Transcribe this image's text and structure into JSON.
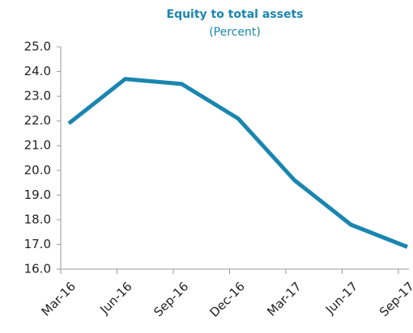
{
  "chart_data": {
    "type": "line",
    "title": "Equity to total assets",
    "subtitle": "(Percent)",
    "categories": [
      "Mar-16",
      "Jun-16",
      "Sep-16",
      "Dec-16",
      "Mar-17",
      "Jun-17",
      "Sep-17"
    ],
    "series": [
      {
        "name": "Equity to total assets",
        "color": "#1a86b0",
        "values": [
          21.9,
          23.7,
          23.5,
          22.1,
          19.6,
          17.8,
          16.9
        ]
      }
    ],
    "ylim": [
      16,
      25
    ],
    "yticks": [
      {
        "value": 16,
        "label": "16.0"
      },
      {
        "value": 17,
        "label": "17.0"
      },
      {
        "value": 18,
        "label": "18.0"
      },
      {
        "value": 19,
        "label": "19.0"
      },
      {
        "value": 20,
        "label": "20.0"
      },
      {
        "value": 21,
        "label": "21.0"
      },
      {
        "value": 22,
        "label": "22.0"
      },
      {
        "value": 23,
        "label": "23.0"
      },
      {
        "value": 24,
        "label": "24.0"
      },
      {
        "value": 25,
        "label": "25.0"
      }
    ],
    "grid": false
  }
}
